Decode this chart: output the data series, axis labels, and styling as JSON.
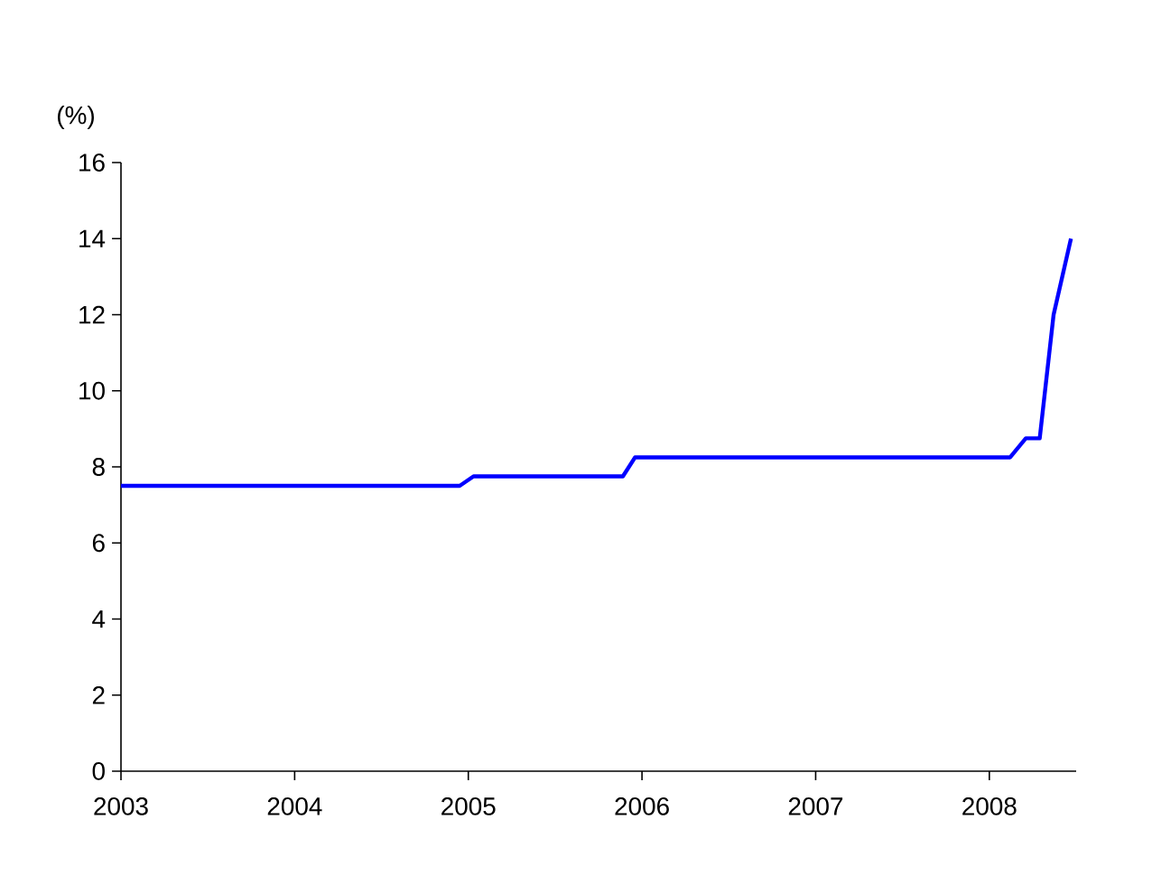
{
  "chart_data": {
    "type": "line",
    "ylabel": "(%)",
    "x": [
      2003.0,
      2004.95,
      2005.03,
      2005.89,
      2005.96,
      2008.12,
      2008.21,
      2008.29,
      2008.37,
      2008.47
    ],
    "series": [
      {
        "color": "#0000ff",
        "values": [
          7.5,
          7.5,
          7.75,
          7.75,
          8.25,
          8.25,
          8.75,
          8.75,
          12,
          14
        ]
      }
    ],
    "xlim": [
      2003,
      2008.5
    ],
    "xticks": [
      2003,
      2004,
      2005,
      2006,
      2007,
      2008
    ],
    "ylim": [
      0,
      16
    ],
    "yticks": [
      0,
      2,
      4,
      6,
      8,
      10,
      12,
      14,
      16
    ],
    "grid": false,
    "marker": "none",
    "line_style": "solid"
  }
}
